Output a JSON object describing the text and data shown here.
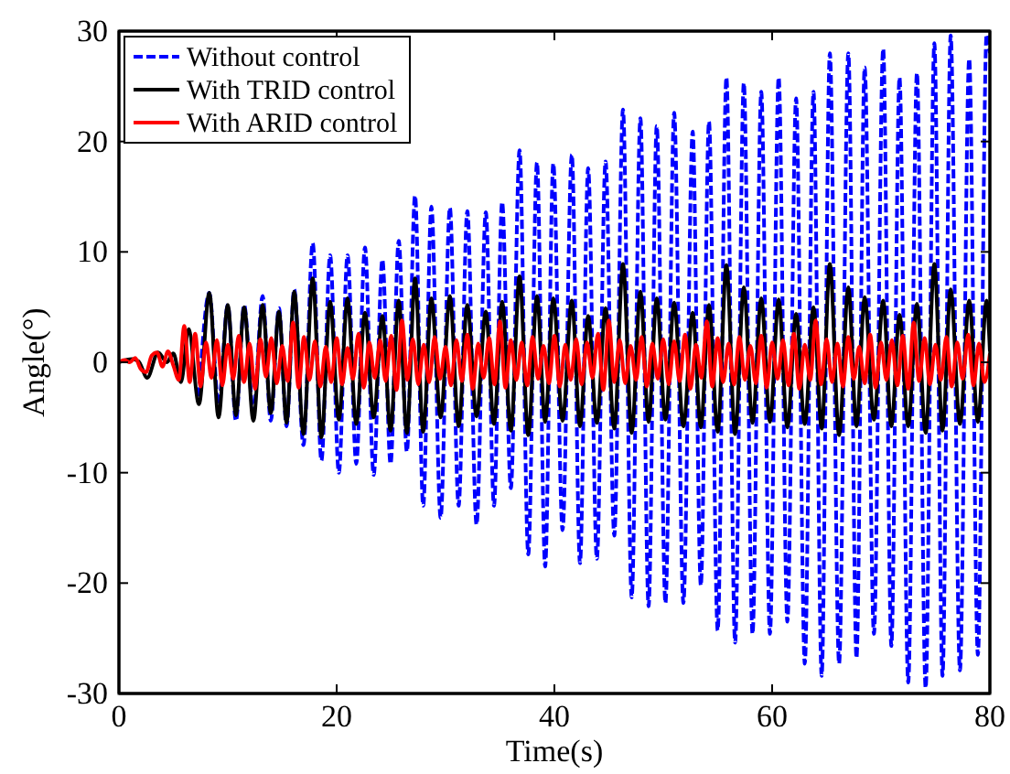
{
  "chart_data": {
    "type": "line",
    "xlabel": "Time(s)",
    "ylabel": "Angle(°)",
    "xlim": [
      0,
      80
    ],
    "xticks": [
      0,
      20,
      40,
      60,
      80
    ],
    "ylim": [
      -30,
      30
    ],
    "yticks": [
      -30,
      -20,
      -10,
      0,
      10,
      20,
      30
    ],
    "grid": false,
    "legend": "top left",
    "series": [
      {
        "name": "Without control",
        "color": "#0000ff",
        "line_style": "dashed",
        "x": [
          7.35,
          8.3,
          9.15,
          10.0,
          10.75,
          11.5,
          12.35,
          13.2,
          13.95,
          14.7,
          15.4,
          16.1,
          16.95,
          17.8,
          18.6,
          19.4,
          20.2,
          21.0,
          21.8,
          22.6,
          23.4,
          24.2,
          24.95,
          25.7,
          26.45,
          27.2,
          27.95,
          28.7,
          29.55,
          30.4,
          31.2,
          32.0,
          32.85,
          33.7,
          34.45,
          35.2,
          36.0,
          36.8,
          37.6,
          38.4,
          39.15,
          39.9,
          40.75,
          41.6,
          42.35,
          43.1,
          43.9,
          44.7,
          45.5,
          46.3,
          47.1,
          47.9,
          48.65,
          49.4,
          50.2,
          51.0,
          51.85,
          52.7,
          53.45,
          54.2,
          55.0,
          55.8,
          56.6,
          57.4,
          58.2,
          59.0,
          59.8,
          60.6,
          61.4,
          62.2,
          63.0,
          63.8,
          64.55,
          65.3,
          66.15,
          67.0,
          67.75,
          68.5,
          69.35,
          70.2,
          70.95,
          71.7,
          72.5,
          73.3,
          74.1,
          74.9,
          75.65,
          76.4,
          77.25,
          78.1,
          78.9,
          79.7,
          80
        ],
        "values": [
          -3.1,
          6.3,
          -3.8,
          5.2,
          -5.3,
          5.2,
          -4.5,
          6.0,
          -5.3,
          4.9,
          -5.8,
          6.6,
          -7.5,
          10.8,
          -8.9,
          9.7,
          -10.0,
          9.7,
          -9.2,
          10.4,
          -10.2,
          9.3,
          -9.2,
          11.0,
          -8.1,
          15.1,
          -13.0,
          14.1,
          -14.1,
          14.0,
          -13.0,
          13.7,
          -14.7,
          13.6,
          -13.0,
          14.5,
          -11.4,
          19.2,
          -17.4,
          18.1,
          -18.5,
          18.0,
          -15.2,
          18.8,
          -18.2,
          17.6,
          -17.8,
          18.2,
          -15.7,
          22.9,
          -21.3,
          22.1,
          -22.1,
          21.4,
          -21.8,
          22.6,
          -21.8,
          20.9,
          -20.2,
          21.8,
          -24.3,
          25.8,
          -25.4,
          25.3,
          -24.6,
          24.5,
          -24.6,
          25.8,
          -23.5,
          23.9,
          -27.3,
          24.5,
          -28.4,
          28.0,
          -27.3,
          28.0,
          -26.8,
          26.7,
          -24.6,
          28.4,
          -25.7,
          25.8,
          -29.0,
          26.2,
          -29.5,
          28.9,
          -28.4,
          29.6,
          -27.9,
          27.5,
          -26.5,
          29.7,
          28
        ]
      },
      {
        "name": "With TRID control",
        "color": "#000000",
        "line_style": "solid",
        "x": [
          0,
          1.2,
          1.8,
          2.6,
          3.6,
          4.4,
          5.0,
          5.7,
          6.4,
          7.35,
          8.3,
          9.15,
          10.0,
          10.75,
          11.5,
          12.35,
          13.2,
          13.95,
          14.7,
          15.4,
          16.1,
          16.95,
          17.8,
          18.6,
          19.4,
          20.2,
          21.0,
          21.8,
          22.6,
          23.4,
          24.2,
          24.95,
          25.7,
          26.45,
          27.2,
          27.95,
          28.7,
          29.55,
          30.4,
          31.2,
          32.0,
          32.85,
          33.7,
          34.45,
          35.2,
          36.0,
          36.8,
          37.6,
          38.4,
          39.15,
          39.9,
          40.75,
          41.6,
          42.35,
          43.1,
          43.9,
          44.7,
          45.5,
          46.3,
          47.1,
          47.9,
          48.65,
          49.4,
          50.2,
          51.0,
          51.85,
          52.7,
          53.45,
          54.2,
          55.0,
          55.8,
          56.6,
          57.4,
          58.2,
          59.0,
          59.8,
          60.6,
          61.4,
          62.2,
          63.0,
          63.8,
          64.55,
          65.3,
          66.15,
          67.0,
          67.75,
          68.5,
          69.35,
          70.2,
          70.95,
          71.7,
          72.5,
          73.3,
          74.1,
          74.9,
          75.65,
          76.4,
          77.25,
          78.1,
          78.9,
          79.7,
          80
        ],
        "values": [
          0,
          0.3,
          0.1,
          -1.4,
          0.9,
          0,
          0.8,
          -1.8,
          3.0,
          -3.8,
          6.3,
          -5.0,
          5.2,
          -4.8,
          5.0,
          -5.3,
          5.2,
          -4.6,
          4.6,
          -5.5,
          6.4,
          -6.5,
          7.6,
          -6.8,
          5.5,
          -5.2,
          5.8,
          -5.6,
          4.5,
          -5.0,
          4.2,
          -6.2,
          5.6,
          -6.4,
          7.6,
          -6.3,
          5.8,
          -5.0,
          6.0,
          -5.8,
          5.2,
          -4.9,
          4.6,
          -5.6,
          5.5,
          -6.2,
          7.8,
          -6.6,
          6.0,
          -5.4,
          5.8,
          -5.3,
          5.6,
          -5.8,
          4.2,
          -5.5,
          4.9,
          -6.0,
          8.9,
          -6.4,
          6.4,
          -5.4,
          5.8,
          -5.2,
          5.4,
          -5.8,
          4.5,
          -5.9,
          5.2,
          -6.3,
          8.8,
          -6.5,
          6.8,
          -5.5,
          5.8,
          -5.4,
          5.7,
          -5.9,
          4.4,
          -5.6,
          5.0,
          -6.0,
          8.9,
          -6.6,
          6.8,
          -5.8,
          5.9,
          -5.2,
          5.6,
          -5.8,
          4.3,
          -5.8,
          5.3,
          -6.4,
          8.9,
          -6.2,
          6.6,
          -5.6,
          5.6,
          -5.4,
          5.6,
          1.0
        ]
      },
      {
        "name": "With ARID control",
        "color": "#ff0000",
        "line_style": "solid",
        "x": [
          0,
          0.5,
          1,
          1.5,
          2,
          2.5,
          3,
          3.5,
          4,
          4.5,
          5,
          5.5,
          6,
          6.5,
          7,
          7.5,
          8,
          8.5,
          9,
          9.5,
          10,
          10.5,
          11,
          11.5,
          12,
          12.5,
          13,
          13.5,
          14,
          14.5,
          15,
          15.5,
          16,
          16.5,
          17,
          17.5,
          18,
          18.5,
          19,
          19.5,
          20,
          20.5,
          21,
          21.5,
          22,
          22.5,
          23,
          23.5,
          24,
          24.5,
          25,
          25.5,
          26,
          26.5,
          27,
          27.5,
          28,
          28.5,
          29,
          29.5,
          30,
          30.5,
          31,
          31.5,
          32,
          32.5,
          33,
          33.5,
          34,
          34.5,
          35,
          35.5,
          36,
          36.5,
          37,
          37.5,
          38,
          38.5,
          39,
          39.5,
          40,
          40.5,
          41,
          41.5,
          42,
          42.5,
          43,
          43.5,
          44,
          44.5,
          45,
          45.5,
          46,
          46.5,
          47,
          47.5,
          48,
          48.5,
          49,
          49.5,
          50,
          50.5,
          51,
          51.5,
          52,
          52.5,
          53,
          53.5,
          54,
          54.5,
          55,
          55.5,
          56,
          56.5,
          57,
          57.5,
          58,
          58.5,
          59,
          59.5,
          60,
          60.5,
          61,
          61.5,
          62,
          62.5,
          63,
          63.5,
          64,
          64.5,
          65,
          65.5,
          66,
          66.5,
          67,
          67.5,
          68,
          68.5,
          69,
          69.5,
          70,
          70.5,
          71,
          71.5,
          72,
          72.5,
          73,
          73.5,
          74,
          74.5,
          75,
          75.5,
          76,
          76.5,
          77,
          77.5,
          78,
          78.5,
          79,
          79.5,
          80
        ],
        "values": [
          0,
          0.2,
          0,
          0.4,
          -0.6,
          -0.9,
          0.6,
          0.9,
          -0.4,
          1.0,
          -0.3,
          -1.6,
          3.3,
          -1.8,
          2.6,
          -2.2,
          1.8,
          -1.4,
          2.0,
          -2.1,
          1.6,
          -1.5,
          2.4,
          -1.8,
          1.7,
          -2.4,
          2.1,
          -1.3,
          2.2,
          -1.9,
          1.5,
          -1.7,
          3.6,
          -2.3,
          2.3,
          -1.6,
          1.9,
          -2.2,
          1.4,
          -1.8,
          2.2,
          -2.0,
          1.3,
          -1.5,
          2.6,
          -2.3,
          1.8,
          -1.4,
          2.0,
          -1.7,
          2.4,
          -2.5,
          3.8,
          -1.6,
          2.1,
          -2.0,
          1.6,
          -1.8,
          2.3,
          -1.5,
          1.4,
          -2.1,
          2.0,
          -1.7,
          2.5,
          -2.4,
          1.7,
          -1.4,
          2.2,
          -2.0,
          3.7,
          -2.3,
          2.0,
          -1.6,
          1.8,
          -2.1,
          2.3,
          -1.5,
          1.5,
          -1.9,
          2.4,
          -2.2,
          1.6,
          -1.6,
          2.1,
          -2.0,
          1.8,
          -1.4,
          2.6,
          -2.5,
          3.8,
          -1.8,
          2.0,
          -1.9,
          1.5,
          -1.6,
          2.3,
          -2.2,
          1.7,
          -1.5,
          2.1,
          -2.0,
          1.9,
          -1.7,
          2.5,
          -2.4,
          1.6,
          -1.4,
          3.7,
          -2.2,
          2.2,
          -1.8,
          1.7,
          -2.0,
          2.3,
          -1.6,
          1.5,
          -1.9,
          2.4,
          -2.3,
          1.8,
          -1.5,
          2.0,
          -2.1,
          2.6,
          -2.4,
          1.6,
          -1.6,
          3.8,
          -2.0,
          2.1,
          -1.8,
          1.7,
          -2.2,
          2.3,
          -1.5,
          1.4,
          -1.9,
          2.5,
          -2.3,
          1.8,
          -1.6,
          2.0,
          -2.1,
          2.4,
          -2.4,
          3.6,
          -1.7,
          2.2,
          -2.0,
          1.6,
          -1.6,
          2.3,
          -2.2,
          1.8,
          -1.5,
          2.5,
          -2.1,
          1.7,
          -1.8,
          0.8
        ]
      }
    ]
  }
}
